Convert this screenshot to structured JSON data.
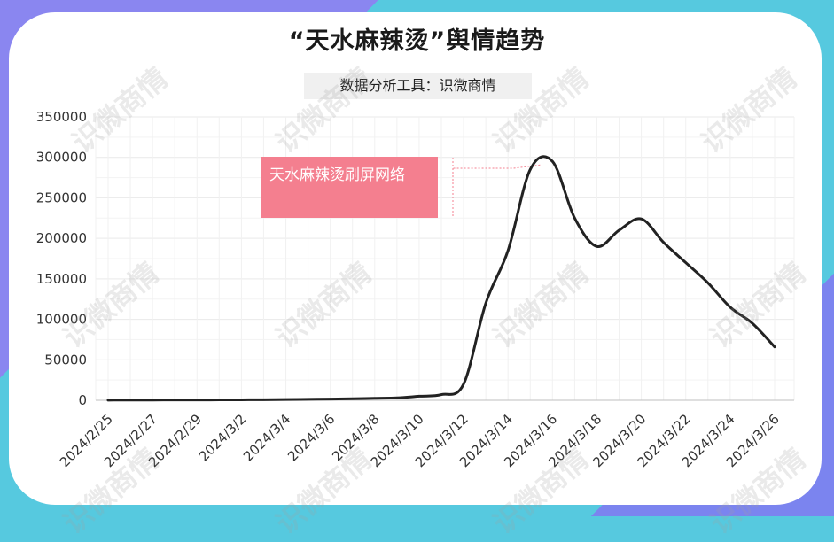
{
  "title": "“天水麻辣烫”舆情趋势",
  "subtitle": "数据分析工具：识微商情",
  "watermark_text": "识微商情",
  "annotation": {
    "text": "天水麻辣烫刷屏网络",
    "x": "2024/3/16",
    "y": 295000
  },
  "colors": {
    "line": "#222222",
    "annotation": "#f47f8f",
    "grid": "#e9e9e9",
    "background_a": "#56c9df",
    "background_b": "#8a86f0"
  },
  "chart_data": {
    "type": "line",
    "title": "“天水麻辣烫”舆情趋势",
    "xlabel": "",
    "ylabel": "",
    "ylim": [
      0,
      350000
    ],
    "yticks": [
      0,
      50000,
      100000,
      150000,
      200000,
      250000,
      300000,
      350000
    ],
    "ytick_labels": [
      "0",
      "50000",
      "100000",
      "150000",
      "200000",
      "250000",
      "300000",
      "350000"
    ],
    "xtick_labels": [
      "2024/2/25",
      "2024/2/27",
      "2024/2/29",
      "2024/3/2",
      "2024/3/4",
      "2024/3/6",
      "2024/3/8",
      "2024/3/10",
      "2024/3/12",
      "2024/3/14",
      "2024/3/16",
      "2024/3/18",
      "2024/3/20",
      "2024/3/22",
      "2024/3/24",
      "2024/3/26"
    ],
    "grid": true,
    "x": [
      "2024/2/25",
      "2024/2/26",
      "2024/2/27",
      "2024/2/28",
      "2024/2/29",
      "2024/3/1",
      "2024/3/2",
      "2024/3/3",
      "2024/3/4",
      "2024/3/5",
      "2024/3/6",
      "2024/3/7",
      "2024/3/8",
      "2024/3/9",
      "2024/3/10",
      "2024/3/11",
      "2024/3/12",
      "2024/3/13",
      "2024/3/14",
      "2024/3/15",
      "2024/3/16",
      "2024/3/17",
      "2024/3/18",
      "2024/3/19",
      "2024/3/20",
      "2024/3/21",
      "2024/3/22",
      "2024/3/23",
      "2024/3/24",
      "2024/3/25",
      "2024/3/26"
    ],
    "series": [
      {
        "values": [
          200,
          300,
          300,
          400,
          400,
          500,
          600,
          700,
          900,
          1200,
          1500,
          1900,
          2500,
          3000,
          5000,
          7000,
          20000,
          120000,
          185000,
          285000,
          295000,
          225000,
          190000,
          210000,
          224000,
          195000,
          170000,
          145000,
          115000,
          95000,
          66000
        ]
      }
    ]
  }
}
